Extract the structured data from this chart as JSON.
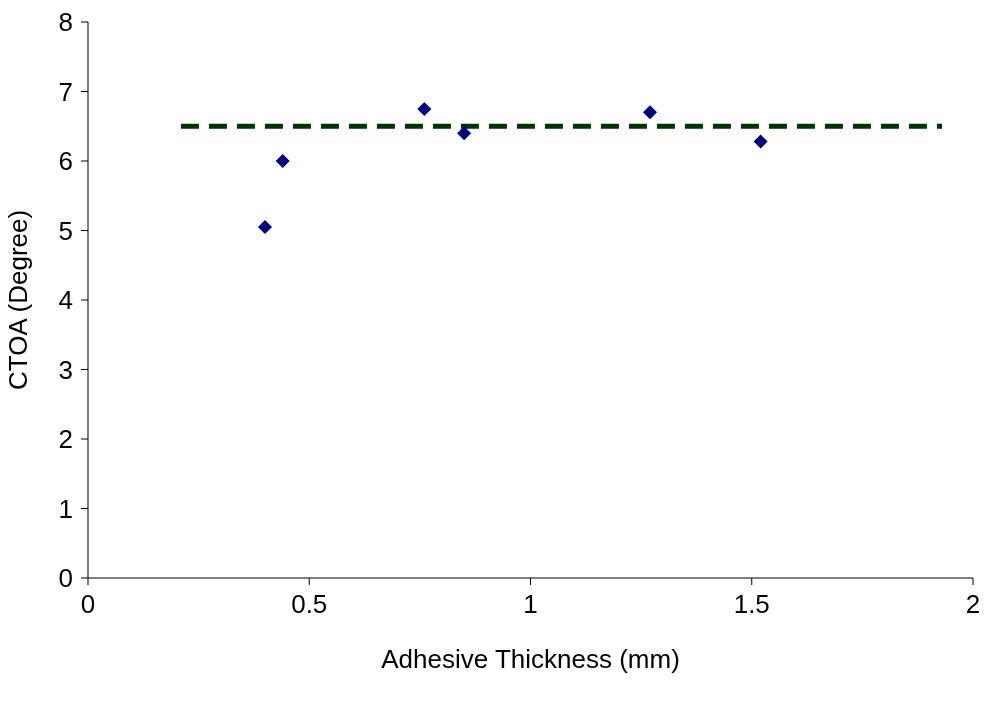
{
  "chart_data": {
    "type": "scatter",
    "xlabel": "Adhesive Thickness (mm)",
    "ylabel": "CTOA (Degree)",
    "xlim": [
      0,
      2
    ],
    "xticks": [
      0,
      0.5,
      1,
      1.5,
      2
    ],
    "ylim": [
      0,
      8
    ],
    "yticks": [
      0,
      1,
      2,
      3,
      4,
      5,
      6,
      7,
      8
    ],
    "grid": false,
    "legend": false,
    "series": [
      {
        "color": "#000080",
        "marker": "diamond",
        "x": [
          0.4,
          0.44,
          0.76,
          0.85,
          1.27,
          1.52
        ],
        "values": [
          5.05,
          6.0,
          6.75,
          6.4,
          6.7,
          6.28
        ]
      },
      {
        "type": "line",
        "color": "#003300",
        "line_style": "dashed",
        "marker": "none",
        "x": [
          0.21,
          1.93
        ],
        "values": [
          6.5,
          6.5
        ]
      }
    ]
  }
}
